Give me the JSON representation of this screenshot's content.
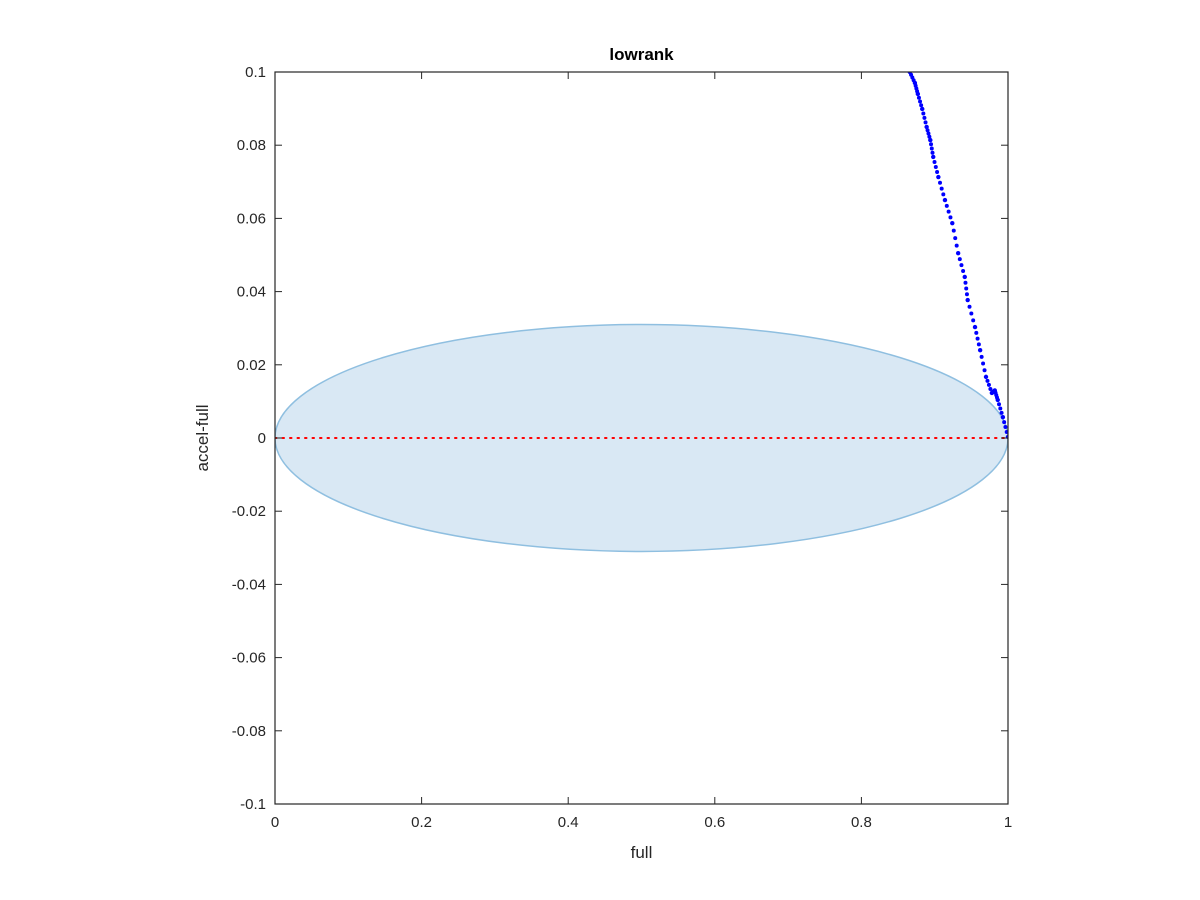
{
  "chart_data": {
    "type": "scatter",
    "title": "lowrank",
    "xlabel": "full",
    "ylabel": "accel-full",
    "xlim": [
      0,
      1
    ],
    "ylim": [
      -0.1,
      0.1
    ],
    "xticks": [
      0,
      0.2,
      0.4,
      0.6,
      0.8,
      1
    ],
    "xtick_labels": [
      "0",
      "0.2",
      "0.4",
      "0.6",
      "0.8",
      "1"
    ],
    "yticks": [
      -0.1,
      -0.08,
      -0.06,
      -0.04,
      -0.02,
      0,
      0.02,
      0.04,
      0.06,
      0.08,
      0.1
    ],
    "ytick_labels": [
      "-0.1",
      "-0.08",
      "-0.06",
      "-0.04",
      "-0.02",
      "0",
      "0.02",
      "0.04",
      "0.06",
      "0.08",
      "0.1"
    ],
    "grid": false,
    "ellipse": {
      "center": [
        0.5,
        0
      ],
      "radii": [
        0.5,
        0.031
      ],
      "fill": "#d9e8f4",
      "edge": "#8fbfe0"
    },
    "reference_line": {
      "y": 0,
      "style": "dotted",
      "color": "#ff0000"
    },
    "series": [
      {
        "name": "points",
        "color": "#0000ff",
        "x": [
          0.866,
          0.873,
          0.877,
          0.883,
          0.889,
          0.894,
          0.898,
          0.905,
          0.914,
          0.924,
          0.932,
          0.941,
          0.945,
          0.955,
          0.962,
          0.97,
          0.978,
          0.982,
          0.986,
          0.993,
          1.0
        ],
        "y": [
          0.1,
          0.097,
          0.094,
          0.0899,
          0.085,
          0.0814,
          0.0768,
          0.0713,
          0.065,
          0.0587,
          0.0505,
          0.044,
          0.0377,
          0.0303,
          0.024,
          0.0167,
          0.0123,
          0.013,
          0.0104,
          0.0057,
          0.0003
        ]
      }
    ]
  }
}
